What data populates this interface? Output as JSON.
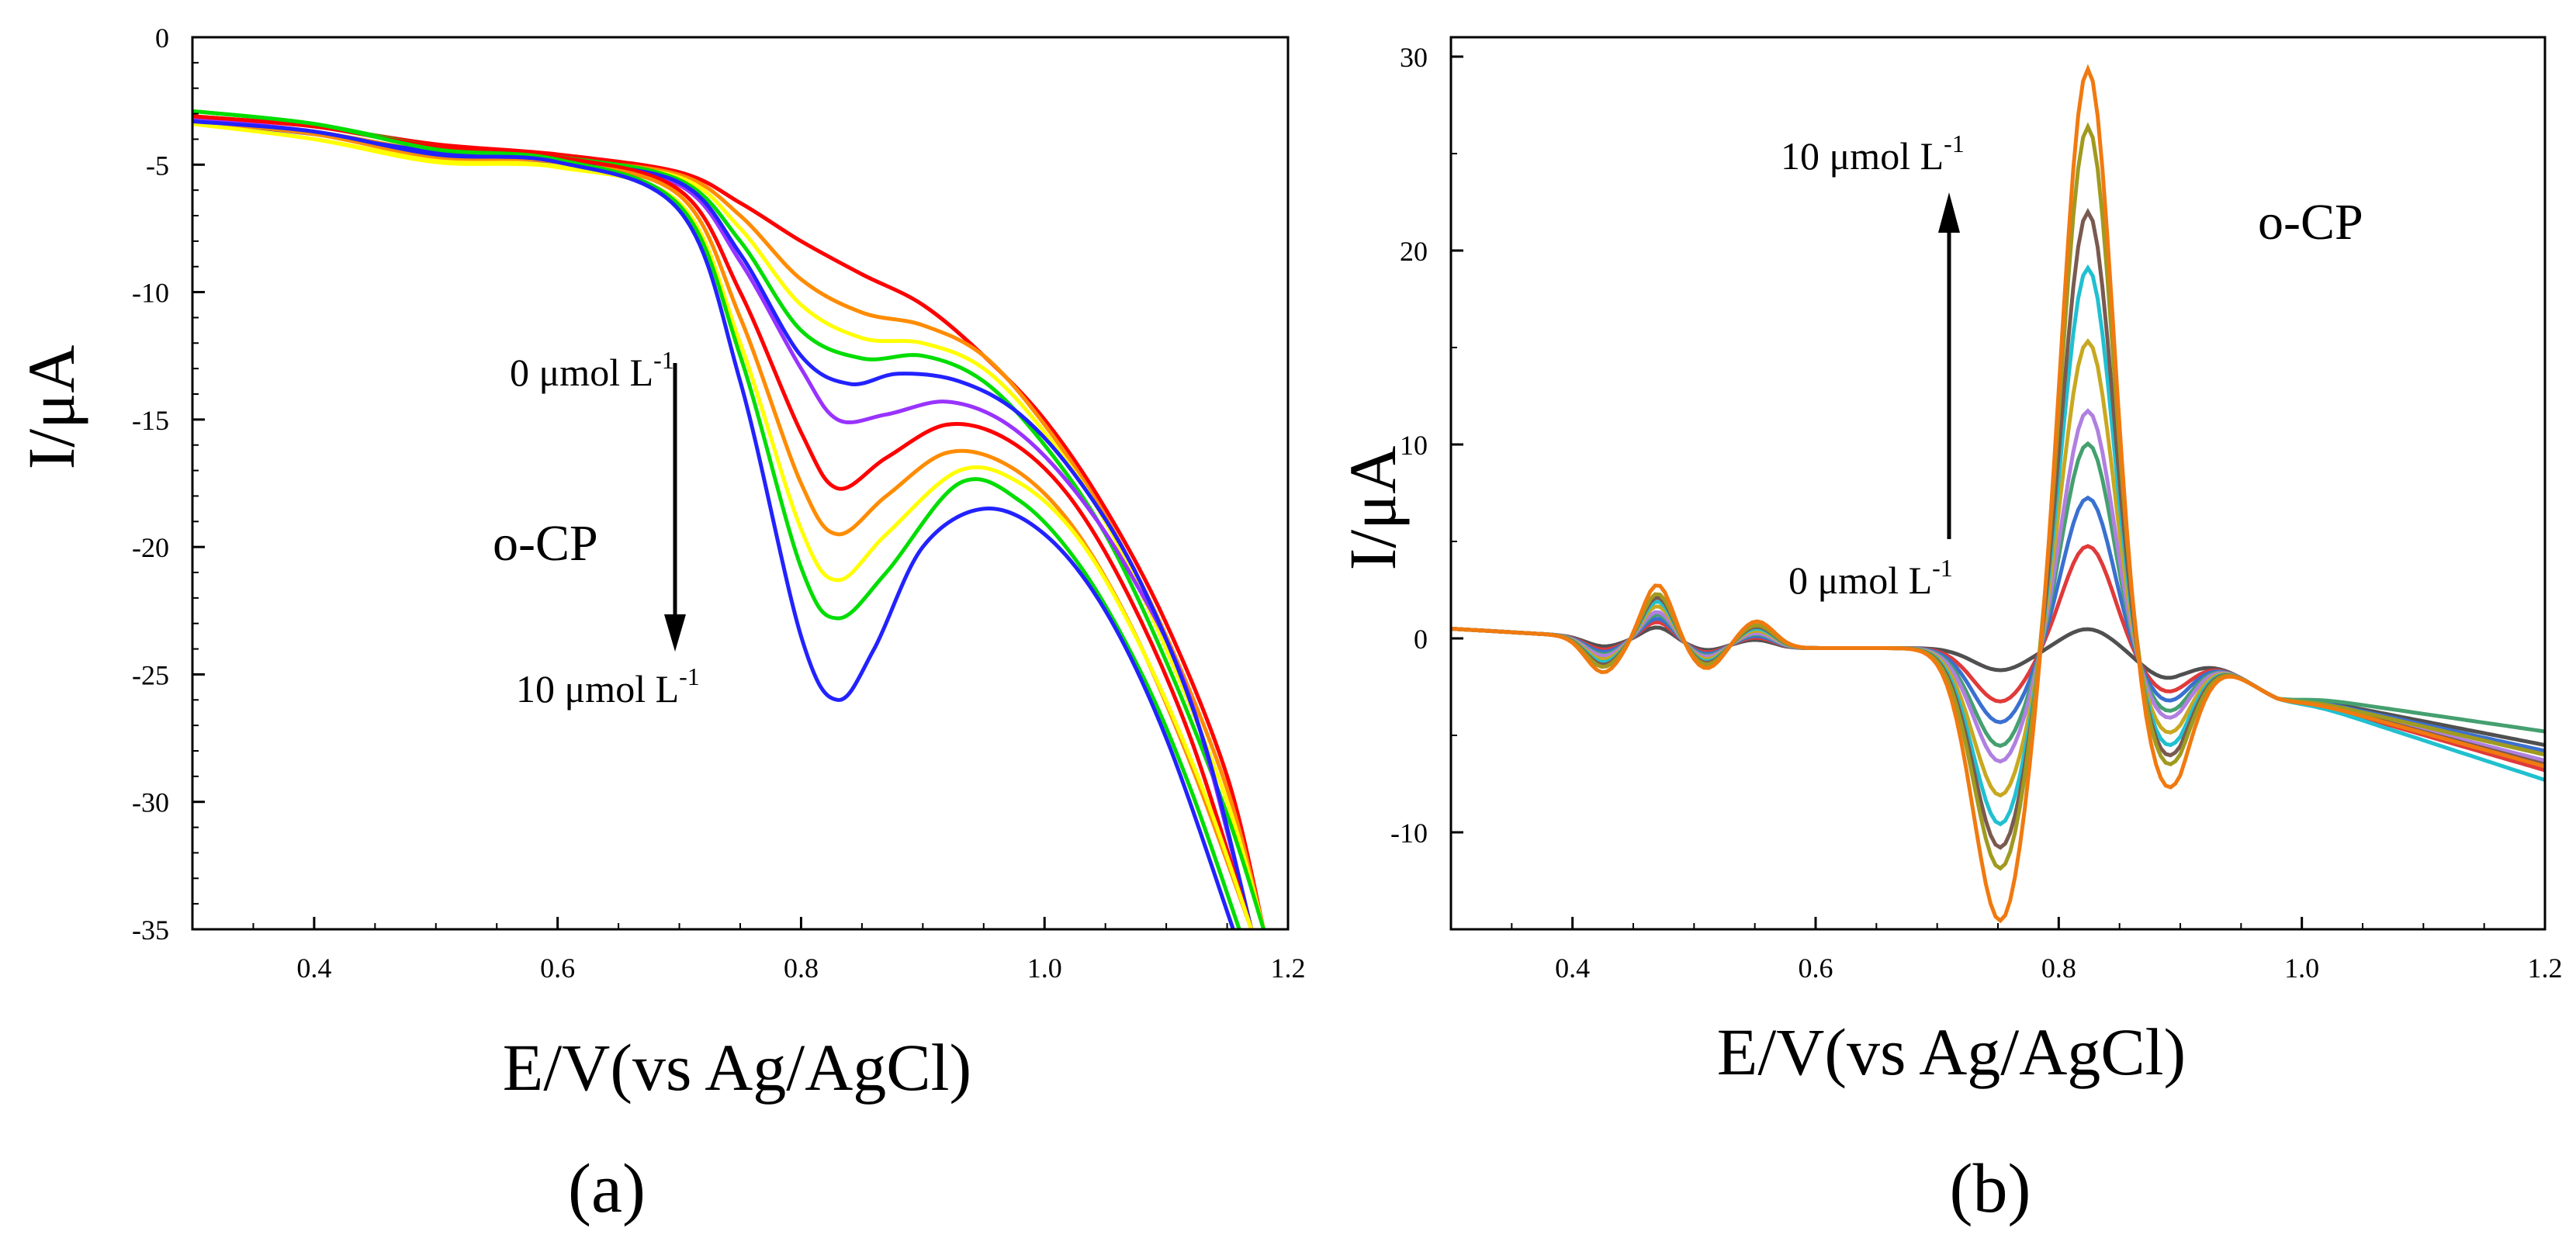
{
  "chart_data": [
    {
      "panel_label": "(a)",
      "type": "line",
      "xlabel": "E/V(vs Ag/AgCl)",
      "ylabel": "I/μA",
      "xlim": [
        0.3,
        1.2
      ],
      "ylim": [
        -35,
        0
      ],
      "xticks": [
        0.4,
        0.6,
        0.8,
        1.0,
        1.2
      ],
      "xtick_labels": [
        "0.4",
        "0.6",
        "0.8",
        "1.0",
        "1.2"
      ],
      "yticks": [
        0,
        -5,
        -10,
        -15,
        -20,
        -25,
        -30,
        -35
      ],
      "ytick_labels": [
        "0",
        "-5",
        "-10",
        "-15",
        "-20",
        "-25",
        "-30",
        "-35"
      ],
      "annotations": {
        "analyte": "o-CP",
        "start_label": "0 μmol L",
        "start_sup": "-1",
        "end_label": "10 μmol L",
        "end_sup": "-1",
        "arrow_direction": "down"
      },
      "series": [
        {
          "color": "#ff0000",
          "values": [
            [
              0.3,
              -3.1
            ],
            [
              0.4,
              -3.5
            ],
            [
              0.5,
              -4.2
            ],
            [
              0.6,
              -4.6
            ],
            [
              0.7,
              -5.3
            ],
            [
              0.75,
              -6.5
            ],
            [
              0.8,
              -8.0
            ],
            [
              0.85,
              -9.3
            ],
            [
              0.9,
              -10.5
            ],
            [
              0.95,
              -12.5
            ],
            [
              1.0,
              -15.0
            ],
            [
              1.05,
              -18.5
            ],
            [
              1.1,
              -23.0
            ],
            [
              1.15,
              -29.0
            ],
            [
              1.18,
              -35.0
            ]
          ]
        },
        {
          "color": "#ff8c00",
          "values": [
            [
              0.3,
              -3.2
            ],
            [
              0.4,
              -3.7
            ],
            [
              0.5,
              -4.5
            ],
            [
              0.6,
              -4.8
            ],
            [
              0.7,
              -5.4
            ],
            [
              0.75,
              -7.0
            ],
            [
              0.8,
              -9.5
            ],
            [
              0.85,
              -10.8
            ],
            [
              0.9,
              -11.3
            ],
            [
              0.95,
              -12.5
            ],
            [
              1.0,
              -15.2
            ],
            [
              1.05,
              -18.8
            ],
            [
              1.1,
              -23.5
            ],
            [
              1.15,
              -29.5
            ],
            [
              1.18,
              -35.0
            ]
          ]
        },
        {
          "color": "#ffff00",
          "values": [
            [
              0.3,
              -3.3
            ],
            [
              0.4,
              -4.0
            ],
            [
              0.5,
              -4.8
            ],
            [
              0.6,
              -5.0
            ],
            [
              0.7,
              -5.5
            ],
            [
              0.75,
              -7.5
            ],
            [
              0.8,
              -10.5
            ],
            [
              0.85,
              -11.8
            ],
            [
              0.9,
              -12.0
            ],
            [
              0.95,
              -13.0
            ],
            [
              1.0,
              -15.5
            ],
            [
              1.05,
              -19.0
            ],
            [
              1.1,
              -24.0
            ],
            [
              1.15,
              -30.0
            ],
            [
              1.18,
              -35.0
            ]
          ]
        },
        {
          "color": "#00dd00",
          "values": [
            [
              0.3,
              -2.9
            ],
            [
              0.4,
              -3.4
            ],
            [
              0.5,
              -4.3
            ],
            [
              0.6,
              -4.7
            ],
            [
              0.7,
              -5.6
            ],
            [
              0.75,
              -8.0
            ],
            [
              0.8,
              -11.5
            ],
            [
              0.85,
              -12.6
            ],
            [
              0.9,
              -12.5
            ],
            [
              0.95,
              -13.5
            ],
            [
              1.0,
              -16.0
            ],
            [
              1.05,
              -19.5
            ],
            [
              1.1,
              -24.5
            ],
            [
              1.15,
              -30.5
            ],
            [
              1.18,
              -35.0
            ]
          ]
        },
        {
          "color": "#9933ff",
          "values": [
            [
              0.3,
              -3.2
            ],
            [
              0.4,
              -3.7
            ],
            [
              0.5,
              -4.6
            ],
            [
              0.6,
              -4.9
            ],
            [
              0.7,
              -5.8
            ],
            [
              0.75,
              -8.8
            ],
            [
              0.8,
              -13.0
            ],
            [
              0.83,
              -15.0
            ],
            [
              0.87,
              -14.8
            ],
            [
              0.92,
              -14.3
            ],
            [
              0.97,
              -15.2
            ],
            [
              1.02,
              -17.5
            ],
            [
              1.07,
              -21.0
            ],
            [
              1.12,
              -26.0
            ],
            [
              1.17,
              -35.0
            ]
          ]
        },
        {
          "color": "#2222ff",
          "values": [
            [
              0.3,
              -3.3
            ],
            [
              0.4,
              -3.8
            ],
            [
              0.5,
              -4.5
            ],
            [
              0.6,
              -4.9
            ],
            [
              0.7,
              -5.7
            ],
            [
              0.75,
              -8.5
            ],
            [
              0.8,
              -12.5
            ],
            [
              0.84,
              -13.6
            ],
            [
              0.88,
              -13.2
            ],
            [
              0.93,
              -13.5
            ],
            [
              0.98,
              -14.8
            ],
            [
              1.03,
              -17.5
            ],
            [
              1.08,
              -21.5
            ],
            [
              1.13,
              -27.5
            ],
            [
              1.17,
              -35.0
            ]
          ]
        },
        {
          "color": "#ff0000",
          "values": [
            [
              0.3,
              -3.1
            ],
            [
              0.4,
              -3.5
            ],
            [
              0.5,
              -4.3
            ],
            [
              0.6,
              -4.7
            ],
            [
              0.7,
              -6.0
            ],
            [
              0.75,
              -10.0
            ],
            [
              0.8,
              -15.5
            ],
            [
              0.83,
              -17.7
            ],
            [
              0.87,
              -16.5
            ],
            [
              0.92,
              -15.2
            ],
            [
              0.97,
              -15.8
            ],
            [
              1.02,
              -18.0
            ],
            [
              1.07,
              -22.0
            ],
            [
              1.12,
              -27.5
            ],
            [
              1.17,
              -35.0
            ]
          ]
        },
        {
          "color": "#ff8c00",
          "values": [
            [
              0.3,
              -3.3
            ],
            [
              0.4,
              -3.8
            ],
            [
              0.5,
              -4.7
            ],
            [
              0.6,
              -4.9
            ],
            [
              0.7,
              -6.2
            ],
            [
              0.75,
              -11.0
            ],
            [
              0.8,
              -17.5
            ],
            [
              0.83,
              -19.5
            ],
            [
              0.87,
              -18.0
            ],
            [
              0.92,
              -16.3
            ],
            [
              0.97,
              -16.8
            ],
            [
              1.02,
              -19.0
            ],
            [
              1.07,
              -23.0
            ],
            [
              1.12,
              -28.5
            ],
            [
              1.17,
              -35.0
            ]
          ]
        },
        {
          "color": "#ffff00",
          "values": [
            [
              0.3,
              -3.4
            ],
            [
              0.4,
              -4.0
            ],
            [
              0.5,
              -4.9
            ],
            [
              0.6,
              -5.1
            ],
            [
              0.7,
              -6.5
            ],
            [
              0.75,
              -12.0
            ],
            [
              0.8,
              -19.3
            ],
            [
              0.83,
              -21.3
            ],
            [
              0.87,
              -19.5
            ],
            [
              0.93,
              -17.0
            ],
            [
              0.98,
              -17.5
            ],
            [
              1.03,
              -19.8
            ],
            [
              1.08,
              -24.0
            ],
            [
              1.13,
              -29.5
            ],
            [
              1.17,
              -35.0
            ]
          ]
        },
        {
          "color": "#00dd00",
          "values": [
            [
              0.3,
              -2.9
            ],
            [
              0.4,
              -3.4
            ],
            [
              0.5,
              -4.4
            ],
            [
              0.6,
              -4.8
            ],
            [
              0.7,
              -6.6
            ],
            [
              0.75,
              -12.5
            ],
            [
              0.8,
              -20.8
            ],
            [
              0.83,
              -22.8
            ],
            [
              0.87,
              -21.0
            ],
            [
              0.93,
              -17.5
            ],
            [
              0.98,
              -18.2
            ],
            [
              1.03,
              -20.8
            ],
            [
              1.08,
              -25.0
            ],
            [
              1.12,
              -29.5
            ],
            [
              1.16,
              -35.0
            ]
          ]
        },
        {
          "color": "#2222ff",
          "values": [
            [
              0.3,
              -3.3
            ],
            [
              0.4,
              -3.7
            ],
            [
              0.5,
              -4.6
            ],
            [
              0.6,
              -4.9
            ],
            [
              0.7,
              -6.8
            ],
            [
              0.75,
              -13.5
            ],
            [
              0.8,
              -23.5
            ],
            [
              0.83,
              -26.0
            ],
            [
              0.86,
              -24.0
            ],
            [
              0.9,
              -20.0
            ],
            [
              0.95,
              -18.5
            ],
            [
              1.0,
              -19.5
            ],
            [
              1.05,
              -22.5
            ],
            [
              1.1,
              -27.5
            ],
            [
              1.155,
              -35.0
            ]
          ]
        }
      ]
    },
    {
      "panel_label": "(b)",
      "type": "line",
      "xlabel": "E/V(vs Ag/AgCl)",
      "ylabel": "I/μA",
      "xlim": [
        0.3,
        1.2
      ],
      "ylim": [
        -15,
        31
      ],
      "xticks": [
        0.4,
        0.6,
        0.8,
        1.0,
        1.2
      ],
      "xtick_labels": [
        "0.4",
        "0.6",
        "0.8",
        "1.0",
        "1.2"
      ],
      "yticks": [
        30,
        20,
        10,
        0,
        -10
      ],
      "ytick_labels": [
        "30",
        "20",
        "10",
        "0",
        "-10"
      ],
      "annotations": {
        "analyte": "o-CP",
        "start_label": "0 μmol L",
        "start_sup": "-1",
        "end_label": "10 μmol L",
        "end_sup": "-1",
        "arrow_direction": "up"
      },
      "series": [
        {
          "color": "#505050",
          "k": 0.04,
          "peak": 1.0,
          "tail": -5.5
        },
        {
          "color": "#e03a3a",
          "k": 0.16,
          "peak": 5.3,
          "tail": -6.8
        },
        {
          "color": "#3a70d0",
          "k": 0.24,
          "peak": 7.8,
          "tail": -5.8
        },
        {
          "color": "#45a070",
          "k": 0.33,
          "peak": 10.6,
          "tail": -4.8
        },
        {
          "color": "#b080e0",
          "k": 0.39,
          "peak": 12.3,
          "tail": -6.3
        },
        {
          "color": "#c8a820",
          "k": 0.52,
          "peak": 15.9,
          "tail": -6.0
        },
        {
          "color": "#20c0d0",
          "k": 0.63,
          "peak": 19.7,
          "tail": -7.3
        },
        {
          "color": "#7a5a50",
          "k": 0.72,
          "peak": 22.6,
          "tail": -6.5
        },
        {
          "color": "#a09a20",
          "k": 0.8,
          "peak": 27.0,
          "tail": -6.0
        },
        {
          "color": "#f07a10",
          "k": 1.0,
          "peak": 30.0,
          "tail": -6.6
        }
      ]
    }
  ]
}
